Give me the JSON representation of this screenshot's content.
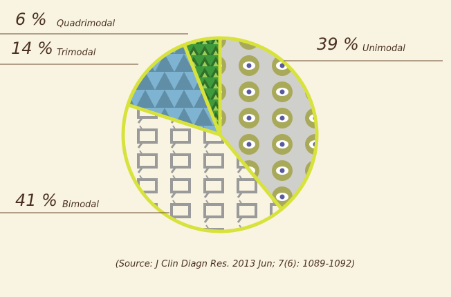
{
  "chart_data": {
    "type": "pie",
    "categories": [
      "Unimodal",
      "Bimodal",
      "Trimodal",
      "Quadrimodal"
    ],
    "values": [
      39,
      41,
      14,
      6
    ],
    "value_labels": [
      "39 %",
      "41 %",
      "14 %",
      "6 %"
    ],
    "colors": [
      "#cfcfcc",
      "#f8f4e1",
      "#7fb3d2",
      "#3f9a3c"
    ],
    "source": "(Source: J Clin Diagn Res. 2013 Jun; 7(6): 1089-1092)"
  }
}
